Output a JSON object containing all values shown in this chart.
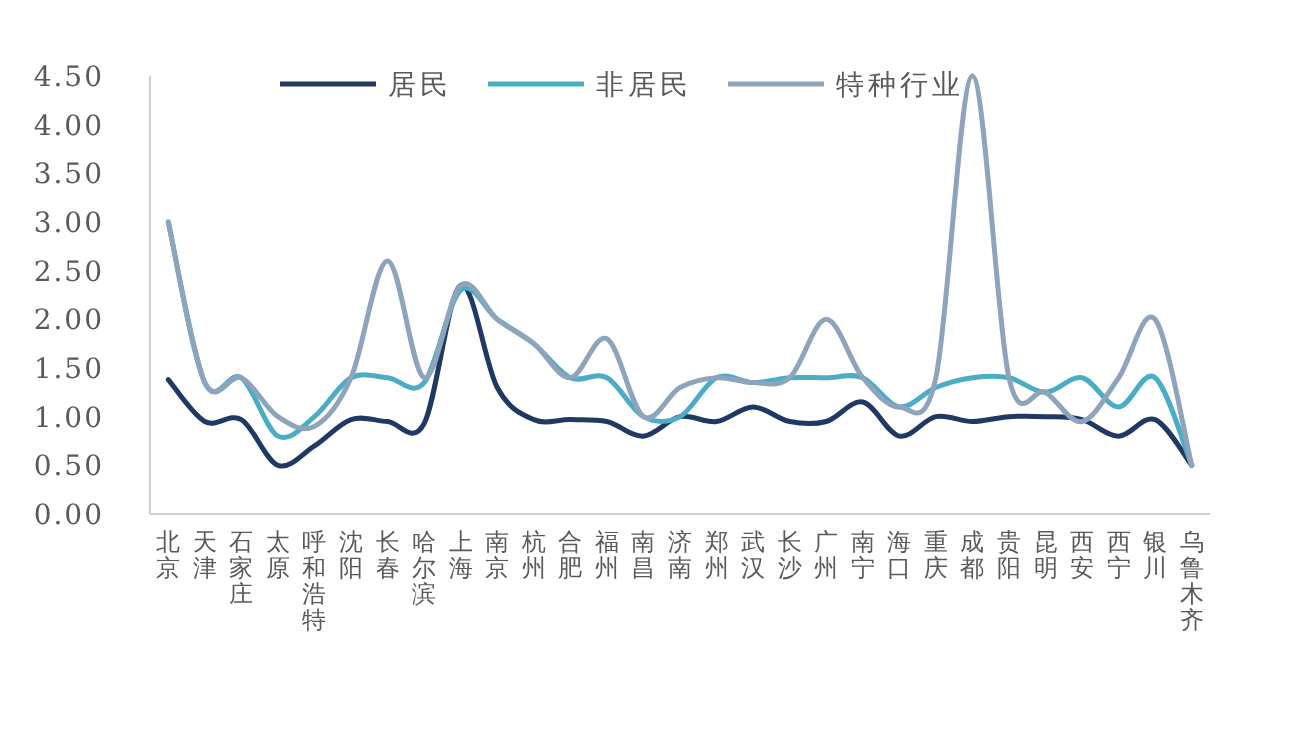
{
  "chart_data": {
    "type": "line",
    "categories": [
      "北京",
      "天津",
      "石家庄",
      "太原",
      "呼和浩特",
      "沈阳",
      "长春",
      "哈尔滨",
      "上海",
      "南京",
      "杭州",
      "合肥",
      "福州",
      "南昌",
      "济南",
      "郑州",
      "武汉",
      "长沙",
      "广州",
      "南宁",
      "海口",
      "重庆",
      "成都",
      "贵阳",
      "昆明",
      "西安",
      "西宁",
      "银川",
      "乌鲁木齐"
    ],
    "series": [
      {
        "name": "居民",
        "color": "#1f3864",
        "values": [
          1.38,
          0.95,
          0.97,
          0.5,
          0.7,
          0.97,
          0.95,
          0.93,
          2.35,
          1.3,
          0.97,
          0.97,
          0.95,
          0.8,
          1.0,
          0.95,
          1.1,
          0.95,
          0.95,
          1.15,
          0.8,
          1.0,
          0.95,
          1.0,
          1.0,
          0.97,
          0.8,
          0.97,
          0.5
        ]
      },
      {
        "name": "非居民",
        "color": "#4bacc6",
        "values": [
          3.0,
          1.35,
          1.4,
          0.8,
          1.0,
          1.4,
          1.4,
          1.35,
          2.3,
          2.0,
          1.75,
          1.4,
          1.4,
          1.0,
          1.0,
          1.4,
          1.35,
          1.4,
          1.4,
          1.4,
          1.1,
          1.3,
          1.4,
          1.4,
          1.25,
          1.4,
          1.1,
          1.4,
          0.5
        ]
      },
      {
        "name": "特种行业",
        "color": "#8ea4bc",
        "values": [
          3.0,
          1.35,
          1.4,
          1.0,
          0.9,
          1.4,
          2.6,
          1.4,
          2.35,
          2.0,
          1.75,
          1.4,
          1.8,
          1.0,
          1.3,
          1.4,
          1.35,
          1.4,
          2.0,
          1.4,
          1.1,
          1.4,
          4.5,
          1.4,
          1.25,
          0.95,
          1.4,
          2.0,
          0.5
        ]
      }
    ],
    "ylim": [
      0,
      4.5
    ],
    "yticks": [
      {
        "value": 0,
        "label": "0.00"
      },
      {
        "value": 0.5,
        "label": "0.50"
      },
      {
        "value": 1,
        "label": "1.00"
      },
      {
        "value": 1.5,
        "label": "1.50"
      },
      {
        "value": 2,
        "label": "2.00"
      },
      {
        "value": 2.5,
        "label": "2.50"
      },
      {
        "value": 3,
        "label": "3.00"
      },
      {
        "value": 3.5,
        "label": "3.50"
      },
      {
        "value": 4,
        "label": "4.00"
      },
      {
        "value": 4.5,
        "label": "4.50"
      }
    ],
    "legend": "top",
    "grid": false,
    "marker": "none",
    "line_style": "solid"
  }
}
